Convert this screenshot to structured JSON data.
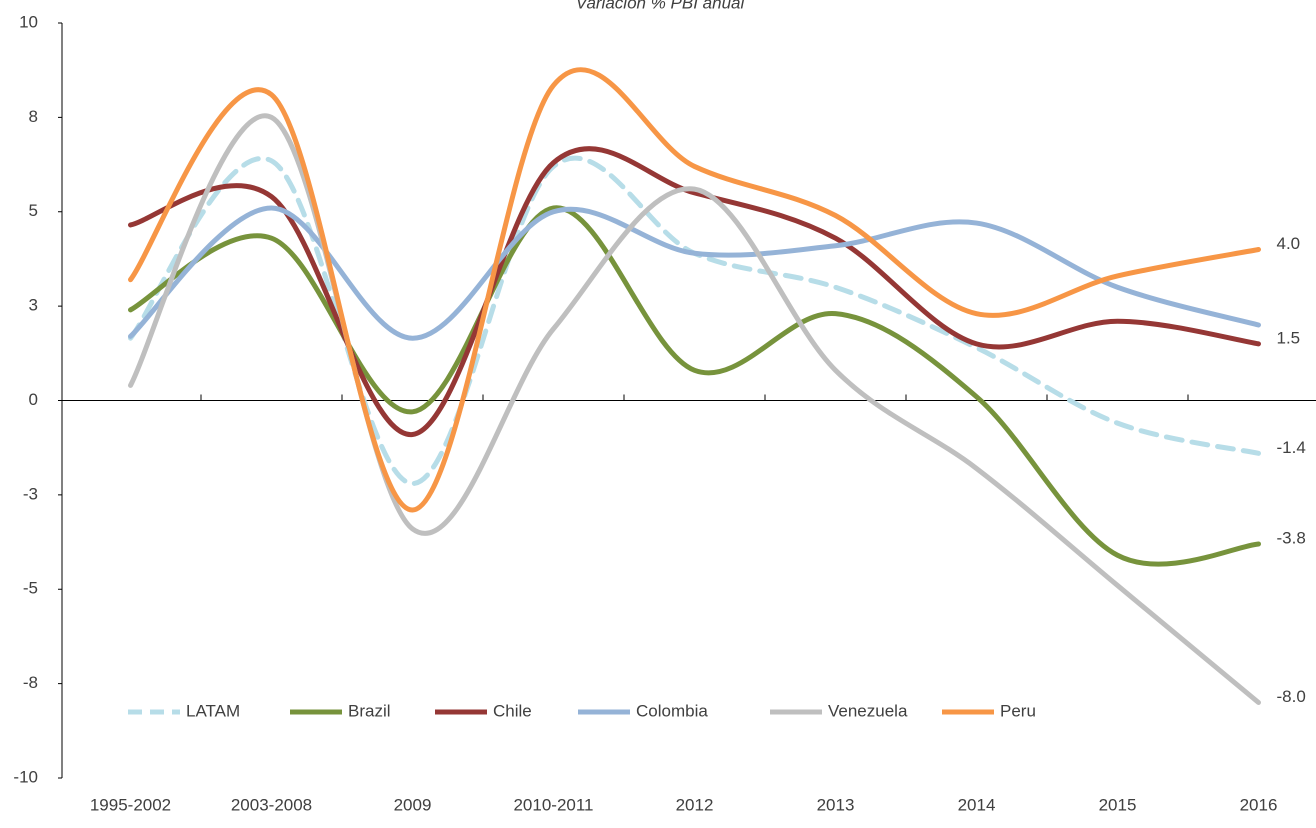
{
  "chart_data": {
    "type": "line",
    "title": "Variación % PBI anual",
    "categories": [
      "1995-2002",
      "2003-2008",
      "2009",
      "2010-2011",
      "2012",
      "2013",
      "2014",
      "2015",
      "2016"
    ],
    "series": [
      {
        "name": "LATAM",
        "color": "#b7dde8",
        "dashed": true,
        "values": [
          1.65,
          6.35,
          -2.2,
          6.2,
          3.9,
          3.0,
          1.4,
          -0.6,
          -1.4
        ],
        "value_labels": [
          null,
          null,
          null,
          null,
          null,
          null,
          null,
          null,
          "-1.4"
        ]
      },
      {
        "name": "Brazil",
        "color": "#77933c",
        "values": [
          2.4,
          4.3,
          -0.3,
          5.1,
          0.8,
          2.3,
          0.1,
          -4.1,
          -3.8
        ],
        "value_labels": [
          null,
          null,
          null,
          null,
          null,
          null,
          null,
          null,
          "-3.8"
        ]
      },
      {
        "name": "Chile",
        "color": "#953735",
        "values": [
          4.65,
          5.4,
          -0.9,
          6.3,
          5.5,
          4.3,
          1.5,
          2.1,
          1.5
        ],
        "value_labels": [
          null,
          null,
          null,
          null,
          null,
          null,
          null,
          null,
          "1.5"
        ]
      },
      {
        "name": "Colombia",
        "color": "#95b3d7",
        "values": [
          1.7,
          5.1,
          1.65,
          5.0,
          3.9,
          4.1,
          4.7,
          3.0,
          2.0
        ]
      },
      {
        "name": "Venezuela",
        "color": "#bfbfbf",
        "values": [
          0.4,
          7.5,
          -3.4,
          1.9,
          5.6,
          0.8,
          -1.8,
          -4.9,
          -8.0
        ],
        "value_labels": [
          null,
          null,
          null,
          null,
          null,
          null,
          null,
          null,
          "-8.0"
        ]
      },
      {
        "name": "Peru",
        "color": "#f79646",
        "values": [
          3.2,
          8.1,
          -2.9,
          8.35,
          6.2,
          4.9,
          2.3,
          3.3,
          4.0
        ],
        "value_labels": [
          null,
          null,
          null,
          null,
          null,
          null,
          null,
          null,
          "4.0"
        ]
      }
    ],
    "ylim": [
      -10,
      10
    ],
    "yticks": [
      {
        "value": -10,
        "label": "-10"
      },
      {
        "value": -7.5,
        "label": "-8"
      },
      {
        "value": -5,
        "label": "-5"
      },
      {
        "value": -2.5,
        "label": "-3"
      },
      0,
      {
        "value": 2.5,
        "label": "3"
      },
      5,
      {
        "value": 7.5,
        "label": "8"
      },
      10
    ],
    "grid": false,
    "legend": "bottom-left"
  }
}
